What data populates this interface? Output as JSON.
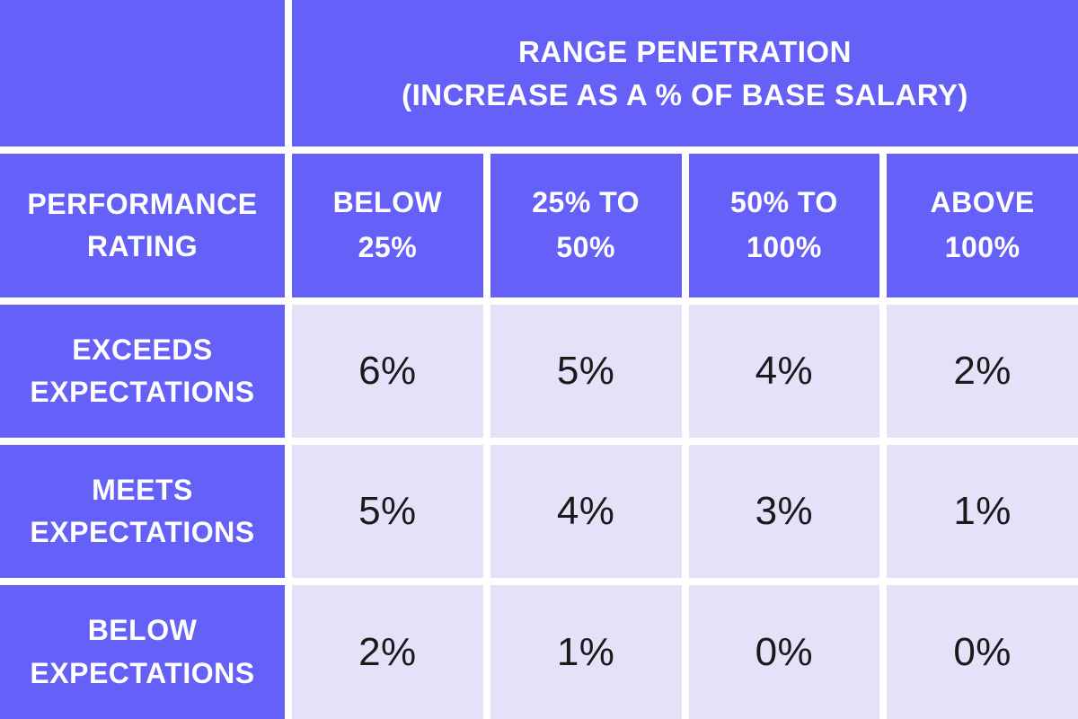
{
  "colors": {
    "header_bg": "#6561f8",
    "value_bg": "#e4e1f8",
    "gutter": "#ffffff",
    "header_text": "#ffffff",
    "value_text": "#1a1a1a"
  },
  "table": {
    "range_header": [
      "RANGE PENETRATION",
      "(INCREASE AS A % OF BASE SALARY)"
    ],
    "performance_header": [
      "PERFORMANCE",
      "RATING"
    ],
    "col_headers": [
      [
        "BELOW",
        "25%"
      ],
      [
        "25% TO",
        "50%"
      ],
      [
        "50% TO",
        "100%"
      ],
      [
        "ABOVE",
        "100%"
      ]
    ],
    "rows": [
      {
        "label": [
          "EXCEEDS",
          "EXPECTATIONS"
        ],
        "values": [
          "6%",
          "5%",
          "4%",
          "2%"
        ]
      },
      {
        "label": [
          "MEETS",
          "EXPECTATIONS"
        ],
        "values": [
          "5%",
          "4%",
          "3%",
          "1%"
        ]
      },
      {
        "label": [
          "BELOW",
          "EXPECTATIONS"
        ],
        "values": [
          "2%",
          "1%",
          "0%",
          "0%"
        ]
      }
    ]
  },
  "chart_data": {
    "type": "table",
    "title": "Range Penetration (Increase as a % of Base Salary)",
    "row_dimension": "Performance Rating",
    "columns": [
      "Below 25%",
      "25% to 50%",
      "50% to 100%",
      "Above 100%"
    ],
    "rows": [
      {
        "performance_rating": "Exceeds Expectations",
        "increase_pct": [
          6,
          5,
          4,
          2
        ]
      },
      {
        "performance_rating": "Meets Expectations",
        "increase_pct": [
          5,
          4,
          3,
          1
        ]
      },
      {
        "performance_rating": "Below Expectations",
        "increase_pct": [
          2,
          1,
          0,
          0
        ]
      }
    ],
    "layout": "matrix table, purple headers on first row and first column, lavender value cells, white gutters"
  }
}
